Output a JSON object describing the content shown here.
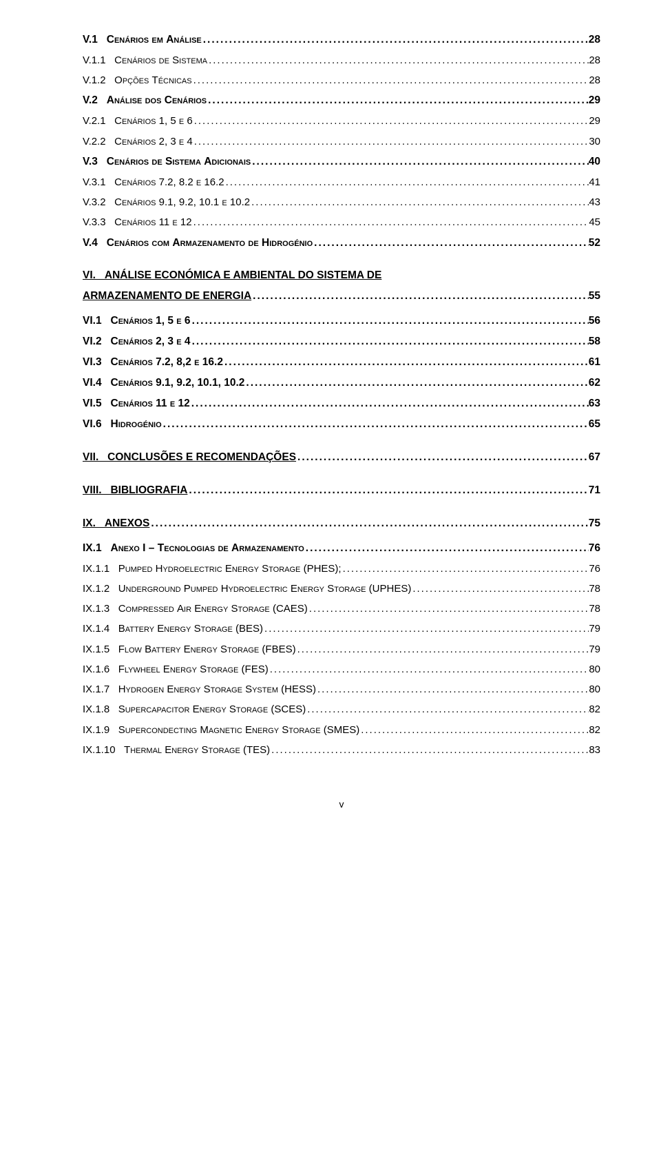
{
  "toc": [
    {
      "level": "lvl-1",
      "label_html": "V.1&nbsp;&nbsp;&nbsp;C<span class='sc'>enários em </span>A<span class='sc'>nálise</span>",
      "page": "28"
    },
    {
      "level": "lvl-2",
      "label_html": "V.1.1&nbsp;&nbsp;&nbsp;C<span class='sc'>enários de </span>S<span class='sc'>istema</span>",
      "page": "28"
    },
    {
      "level": "lvl-2",
      "label_html": "V.1.2&nbsp;&nbsp;&nbsp;O<span class='sc'>pções </span>T<span class='sc'>écnicas</span>",
      "page": "28"
    },
    {
      "level": "lvl-1",
      "label_html": "V.2&nbsp;&nbsp;&nbsp;A<span class='sc'>nálise dos </span>C<span class='sc'>enários</span>",
      "page": "29"
    },
    {
      "level": "lvl-2",
      "label_html": "V.2.1&nbsp;&nbsp;&nbsp;C<span class='sc'>enários</span> 1, 5 <span class='sc'>e</span> 6",
      "page": "29"
    },
    {
      "level": "lvl-2",
      "label_html": "V.2.2&nbsp;&nbsp;&nbsp;C<span class='sc'>enários</span> 2, 3 <span class='sc'>e</span> 4",
      "page": "30"
    },
    {
      "level": "lvl-1",
      "label_html": "V.3&nbsp;&nbsp;&nbsp;C<span class='sc'>enários de </span>S<span class='sc'>istema </span>A<span class='sc'>dicionais</span>",
      "page": "40"
    },
    {
      "level": "lvl-2",
      "label_html": "V.3.1&nbsp;&nbsp;&nbsp;C<span class='sc'>enários</span> 7.2, 8.2 <span class='sc'>e</span> 16.2",
      "page": "41"
    },
    {
      "level": "lvl-2",
      "label_html": "V.3.2&nbsp;&nbsp;&nbsp;C<span class='sc'>enários</span> 9.1, 9.2, 10.1 <span class='sc'>e</span> 10.2",
      "page": "43"
    },
    {
      "level": "lvl-2",
      "label_html": "V.3.3&nbsp;&nbsp;&nbsp;C<span class='sc'>enários</span> 11 <span class='sc'>e</span> 12",
      "page": "45"
    },
    {
      "level": "lvl-1",
      "label_html": "V.4&nbsp;&nbsp;&nbsp;C<span class='sc'>enários com </span>A<span class='sc'>rmazenamento de </span>H<span class='sc'>idrogénio</span>",
      "page": "52"
    },
    {
      "gap": "gap-m"
    },
    {
      "level": "lvl-1u",
      "label_html": "VI.&nbsp;&nbsp;&nbsp;ANÁLISE ECONÓMICA E AMBIENTAL DO SISTEMA DE",
      "page": null,
      "nobreak": true
    },
    {
      "level": "lvl-1u",
      "label_html": "ARMAZENAMENTO DE ENERGIA",
      "page": "55"
    },
    {
      "gap": "gap-s"
    },
    {
      "level": "lvl-1",
      "label_html": "VI.1&nbsp;&nbsp;&nbsp;C<span class='sc'>enários</span> 1, 5 <span class='sc'>e</span> 6",
      "page": "56"
    },
    {
      "level": "lvl-1",
      "label_html": "VI.2&nbsp;&nbsp;&nbsp;C<span class='sc'>enários</span> 2, 3 <span class='sc'>e</span> 4",
      "page": "58"
    },
    {
      "level": "lvl-1",
      "label_html": "VI.3&nbsp;&nbsp;&nbsp;C<span class='sc'>enários</span> 7.2, 8,2 <span class='sc'>e</span> 16.2",
      "page": "61"
    },
    {
      "level": "lvl-1",
      "label_html": "VI.4&nbsp;&nbsp;&nbsp;C<span class='sc'>enários</span> 9.1, 9.2, 10.1, 10.2",
      "page": "62"
    },
    {
      "level": "lvl-1",
      "label_html": "VI.5&nbsp;&nbsp;&nbsp;C<span class='sc'>enários</span> 11 <span class='sc'>e</span> 12",
      "page": "63"
    },
    {
      "level": "lvl-1",
      "label_html": "VI.6&nbsp;&nbsp;&nbsp;H<span class='sc'>idrogénio</span>",
      "page": "65"
    },
    {
      "gap": "gap-m"
    },
    {
      "level": "lvl-1u",
      "label_html": "VII.&nbsp;&nbsp;&nbsp;CONCLUSÕES E RECOMENDAÇÕES",
      "page": "67"
    },
    {
      "gap": "gap-m"
    },
    {
      "level": "lvl-1u",
      "label_html": "VIII.&nbsp;&nbsp;&nbsp;BIBLIOGRAFIA",
      "page": "71"
    },
    {
      "gap": "gap-m"
    },
    {
      "level": "lvl-1u",
      "label_html": "IX.&nbsp;&nbsp;&nbsp;ANEXOS",
      "page": "75"
    },
    {
      "gap": "gap-s"
    },
    {
      "level": "lvl-1",
      "label_html": "IX.1&nbsp;&nbsp;&nbsp;A<span class='sc'>nexo</span> I – T<span class='sc'>ecnologias de </span>A<span class='sc'>rmazenamento</span>",
      "page": "76"
    },
    {
      "level": "lvl-2",
      "label_html": "IX.1.1&nbsp;&nbsp;&nbsp;P<span class='sc'>umped </span>H<span class='sc'>ydroelectric </span>E<span class='sc'>nergy </span>S<span class='sc'>torage</span> (PHES);",
      "page": "76"
    },
    {
      "level": "lvl-2",
      "label_html": "IX.1.2&nbsp;&nbsp;&nbsp;U<span class='sc'>nderground </span>P<span class='sc'>umped </span>H<span class='sc'>ydroelectric </span>E<span class='sc'>nergy </span>S<span class='sc'>torage</span> (UPHES)",
      "page": "78"
    },
    {
      "level": "lvl-2",
      "label_html": "IX.1.3&nbsp;&nbsp;&nbsp;C<span class='sc'>ompressed </span>A<span class='sc'>ir </span>E<span class='sc'>nergy </span>S<span class='sc'>torage</span> (CAES)",
      "page": "78"
    },
    {
      "level": "lvl-2",
      "label_html": "IX.1.4&nbsp;&nbsp;&nbsp;B<span class='sc'>attery </span>E<span class='sc'>nergy </span>S<span class='sc'>torage</span> (BES)",
      "page": "79"
    },
    {
      "level": "lvl-2",
      "label_html": "IX.1.5&nbsp;&nbsp;&nbsp;F<span class='sc'>low </span>B<span class='sc'>attery </span>E<span class='sc'>nergy </span>S<span class='sc'>torage</span> (FBES)",
      "page": "79"
    },
    {
      "level": "lvl-2",
      "label_html": "IX.1.6&nbsp;&nbsp;&nbsp;F<span class='sc'>lywheel </span>E<span class='sc'>nergy </span>S<span class='sc'>torage</span> (FES)",
      "page": "80"
    },
    {
      "level": "lvl-2",
      "label_html": "IX.1.7&nbsp;&nbsp;&nbsp;H<span class='sc'>ydrogen </span>E<span class='sc'>nergy </span>S<span class='sc'>torage </span>S<span class='sc'>ystem</span> (HESS)",
      "page": "80"
    },
    {
      "level": "lvl-2",
      "label_html": "IX.1.8&nbsp;&nbsp;&nbsp;S<span class='sc'>upercapacitor </span>E<span class='sc'>nergy </span>S<span class='sc'>torage</span> (SCES)",
      "page": "82"
    },
    {
      "level": "lvl-2",
      "label_html": "IX.1.9&nbsp;&nbsp;&nbsp;S<span class='sc'>upercondecting </span>M<span class='sc'>agnetic </span>E<span class='sc'>nergy </span>S<span class='sc'>torage</span> (SMES)",
      "page": "82"
    },
    {
      "level": "lvl-2",
      "label_html": "IX.1.10&nbsp;&nbsp;&nbsp;T<span class='sc'>hermal </span>E<span class='sc'>nergy </span>S<span class='sc'>torage</span> (TES)",
      "page": "83"
    }
  ],
  "footer": "v"
}
